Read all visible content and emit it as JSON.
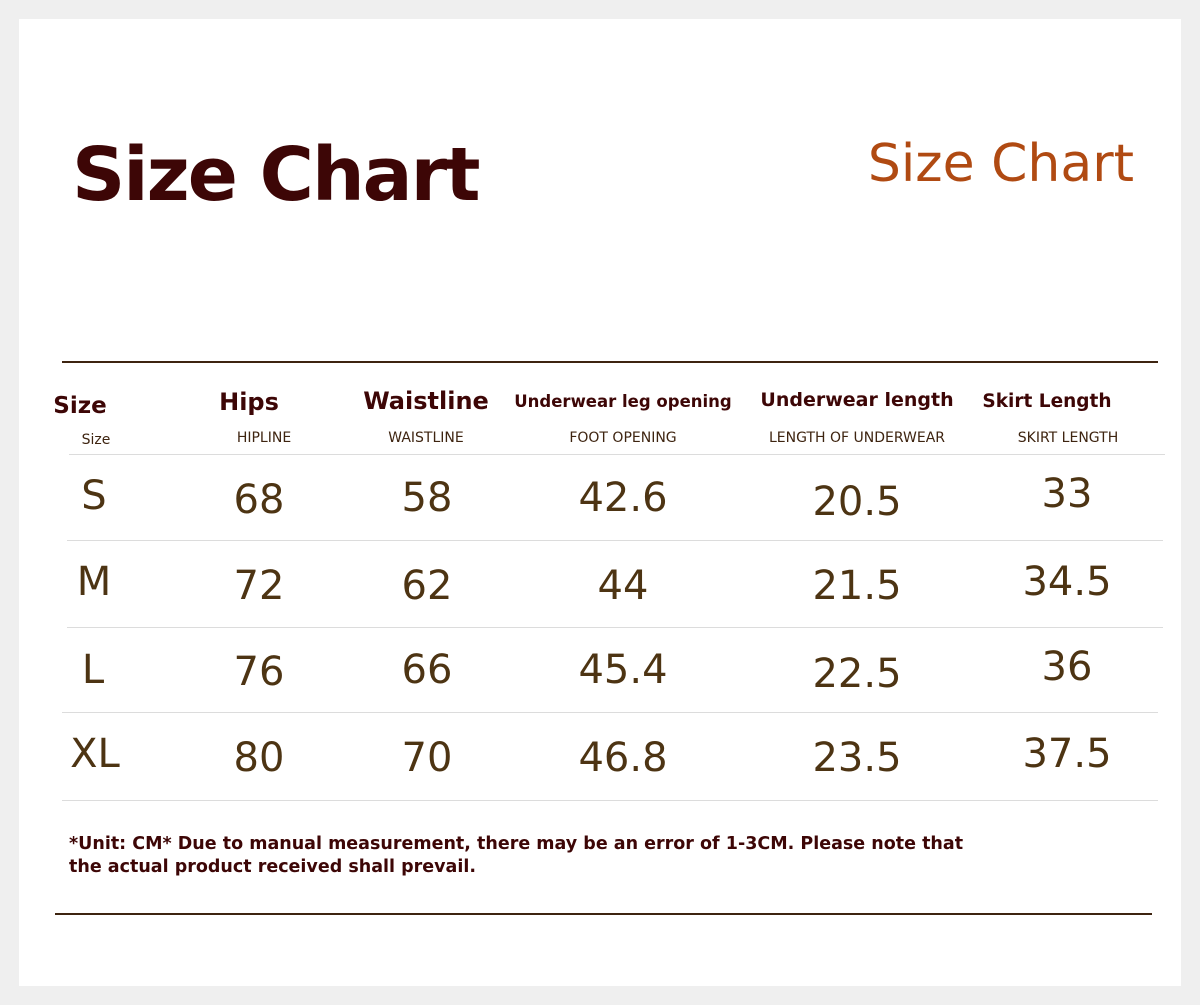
{
  "titles": {
    "main": "Size Chart",
    "accent": "Size Chart"
  },
  "table": {
    "columns": [
      {
        "label": "Size",
        "sublabel": "Size"
      },
      {
        "label": "Hips",
        "sublabel": "HIPLINE"
      },
      {
        "label": "Waistline",
        "sublabel": "WAISTLINE"
      },
      {
        "label": "Underwear leg opening",
        "sublabel": "FOOT OPENING"
      },
      {
        "label": "Underwear length",
        "sublabel": "LENGTH OF UNDERWEAR"
      },
      {
        "label": "Skirt Length",
        "sublabel": "SKIRT LENGTH"
      }
    ],
    "rows": [
      [
        "S",
        "68",
        "58",
        "42.6",
        "20.5",
        "33"
      ],
      [
        "M",
        "72",
        "62",
        "44",
        "21.5",
        "34.5"
      ],
      [
        "L",
        "76",
        "66",
        "45.4",
        "22.5",
        "36"
      ],
      [
        "XL",
        "80",
        "70",
        "46.8",
        "23.5",
        "37.5"
      ]
    ]
  },
  "note": {
    "line1": "*Unit: CM* Due to manual measurement, there may be an error of 1-3CM. Please note that",
    "line2": "the actual product received shall prevail."
  },
  "colors": {
    "title_dark": "#3d0606",
    "title_accent": "#b04a12",
    "value_text": "#4d3413",
    "rule": "#3e2410"
  }
}
